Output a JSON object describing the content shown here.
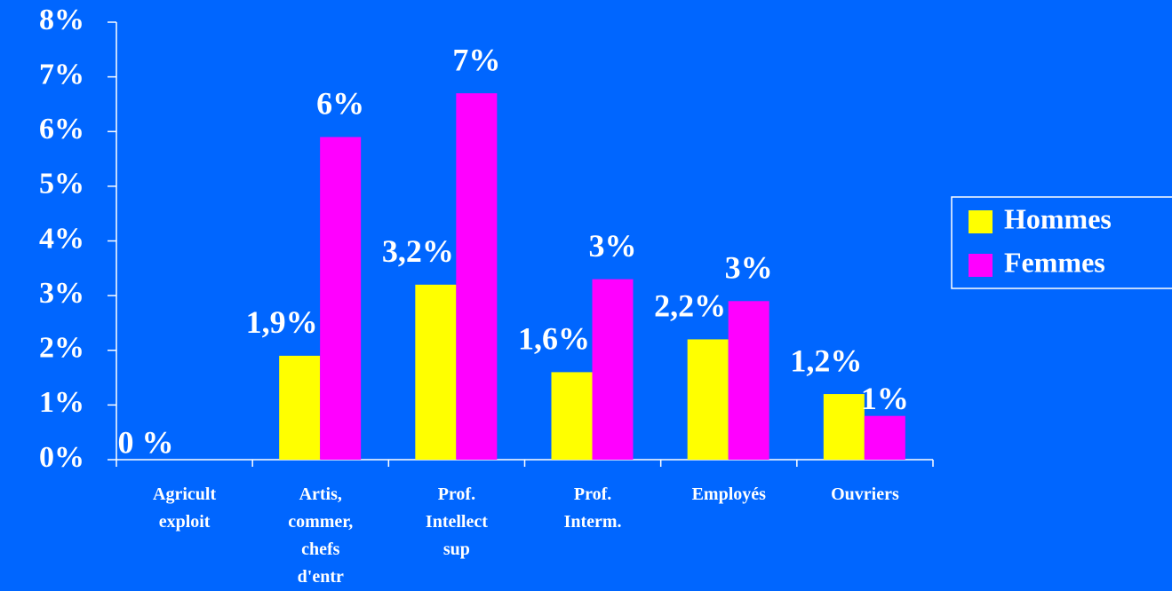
{
  "chart_data": {
    "type": "bar",
    "categories": [
      [
        "Agricult",
        "exploit"
      ],
      [
        "Artis,",
        "commer,",
        "chefs",
        "d'entr"
      ],
      [
        "Prof.",
        "Intellect",
        "sup"
      ],
      [
        "Prof.",
        "Interm."
      ],
      [
        "Employés"
      ],
      [
        "Ouvriers"
      ]
    ],
    "series": [
      {
        "name": "Hommes",
        "color": "#ffff00",
        "values": [
          0,
          1.9,
          3.2,
          1.6,
          2.2,
          1.2
        ],
        "value_labels": [
          "0 %",
          "1,9%",
          "3,2%",
          "1,6%",
          "2,2%",
          "1,2%"
        ]
      },
      {
        "name": "Femmes",
        "color": "#ff00ff",
        "values": [
          0,
          5.9,
          6.7,
          3.3,
          2.9,
          0.8
        ],
        "value_labels": [
          null,
          "6%",
          "7%",
          "3%",
          "3%",
          "1%"
        ]
      }
    ],
    "ylim": [
      0,
      8
    ],
    "yticks": [
      {
        "value": 0,
        "label": "0%"
      },
      {
        "value": 1,
        "label": "1%"
      },
      {
        "value": 2,
        "label": "2%"
      },
      {
        "value": 3,
        "label": "3%"
      },
      {
        "value": 4,
        "label": "4%"
      },
      {
        "value": 5,
        "label": "5%"
      },
      {
        "value": 6,
        "label": "6%"
      },
      {
        "value": 7,
        "label": "7%"
      },
      {
        "value": 8,
        "label": "8%"
      }
    ],
    "legend": "right"
  }
}
